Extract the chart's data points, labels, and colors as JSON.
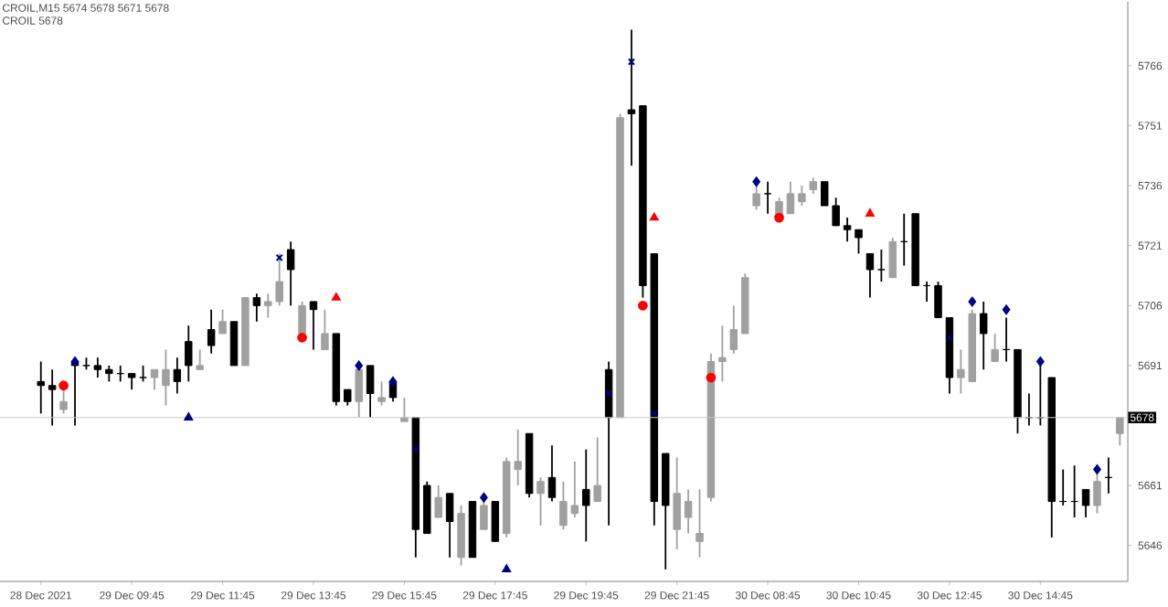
{
  "chart_data": {
    "type": "candlestick",
    "categories": [
      "28 Dec 2021",
      null,
      null,
      null,
      null,
      null,
      null,
      null,
      "29 Dec 09:45",
      null,
      null,
      null,
      null,
      null,
      null,
      null,
      "29 Dec 11:45",
      null,
      null,
      null,
      null,
      null,
      null,
      null,
      "29 Dec 13:45",
      null,
      null,
      null,
      null,
      null,
      null,
      null,
      "29 Dec 15:45",
      null,
      null,
      null,
      null,
      null,
      null,
      null,
      "29 Dec 17:45",
      null,
      null,
      null,
      null,
      null,
      null,
      null,
      "29 Dec 19:45",
      null,
      null,
      null,
      null,
      null,
      null,
      null,
      "29 Dec 21:45",
      null,
      null,
      null,
      null,
      null,
      null,
      null,
      "30 Dec 08:45",
      null,
      null,
      null,
      null,
      null,
      null,
      null,
      "30 Dec 10:45",
      null,
      null,
      null,
      null,
      null,
      null,
      null,
      "30 Dec 12:45",
      null,
      null,
      null,
      null,
      null,
      null,
      null,
      "30 Dec 14:45",
      null,
      null,
      null,
      null,
      null,
      null,
      null
    ],
    "ohlc": [
      [
        5687,
        5692,
        5679,
        5686
      ],
      [
        5686,
        5690,
        5676,
        5685
      ],
      [
        5680,
        5686,
        5679,
        5682
      ],
      [
        5692,
        5693,
        5676,
        5691
      ],
      [
        5691,
        5693,
        5690,
        5691
      ],
      [
        5691,
        5693,
        5688,
        5690
      ],
      [
        5690,
        5691,
        5687,
        5689
      ],
      [
        5689,
        5691,
        5687,
        5689
      ],
      [
        5689,
        5689,
        5685,
        5688
      ],
      [
        5688,
        5691,
        5687,
        5688
      ],
      [
        5688,
        5690,
        5685,
        5690
      ],
      [
        5686,
        5695,
        5681,
        5690
      ],
      [
        5690,
        5693,
        5684,
        5687
      ],
      [
        5697,
        5701,
        5687,
        5691
      ],
      [
        5690,
        5695,
        5690,
        5691
      ],
      [
        5700,
        5705,
        5694,
        5696
      ],
      [
        5699,
        5705,
        5699,
        5702
      ],
      [
        5702,
        5702,
        5691,
        5691
      ],
      [
        5691,
        5708,
        5691,
        5708
      ],
      [
        5708,
        5709,
        5702,
        5706
      ],
      [
        5706,
        5709,
        5703,
        5707
      ],
      [
        5707,
        5719,
        5706,
        5712
      ],
      [
        5720,
        5722,
        5706,
        5715
      ],
      [
        5699,
        5707,
        5699,
        5706
      ],
      [
        5707,
        5707,
        5695,
        5705
      ],
      [
        5695,
        5705,
        5695,
        5699
      ],
      [
        5699,
        5699,
        5681,
        5682
      ],
      [
        5685,
        5685,
        5681,
        5682
      ],
      [
        5682,
        5691,
        5678,
        5690
      ],
      [
        5691,
        5691,
        5678,
        5684
      ],
      [
        5682,
        5687,
        5681,
        5683
      ],
      [
        5687,
        5687,
        5682,
        5683
      ],
      [
        5677,
        5683,
        5677,
        5678
      ],
      [
        5678,
        5678,
        5643,
        5650
      ],
      [
        5661,
        5662,
        5649,
        5649
      ],
      [
        5653,
        5661,
        5653,
        5658
      ],
      [
        5659,
        5659,
        5643,
        5652
      ],
      [
        5643,
        5656,
        5641,
        5654
      ],
      [
        5657,
        5657,
        5643,
        5643
      ],
      [
        5650,
        5658,
        5650,
        5656
      ],
      [
        5657,
        5657,
        5647,
        5647
      ],
      [
        5649,
        5668,
        5648,
        5667
      ],
      [
        5665,
        5675,
        5661,
        5667
      ],
      [
        5674,
        5674,
        5658,
        5659
      ],
      [
        5659,
        5663,
        5651,
        5662
      ],
      [
        5663,
        5671,
        5657,
        5658
      ],
      [
        5651,
        5662,
        5650,
        5657
      ],
      [
        5654,
        5667,
        5653,
        5656
      ],
      [
        5660,
        5670,
        5647,
        5656
      ],
      [
        5657,
        5673,
        5657,
        5661
      ],
      [
        5690,
        5692,
        5651,
        5678
      ],
      [
        5678,
        5754,
        5678,
        5753
      ],
      [
        5755,
        5775,
        5741,
        5754
      ],
      [
        5756,
        5756,
        5708,
        5711
      ],
      [
        5719,
        5719,
        5651,
        5657
      ],
      [
        5669,
        5669,
        5640,
        5656
      ],
      [
        5650,
        5668,
        5645,
        5659
      ],
      [
        5653,
        5660,
        5649,
        5657
      ],
      [
        5647,
        5660,
        5643,
        5649
      ],
      [
        5658,
        5694,
        5657,
        5692
      ],
      [
        5692,
        5701,
        5687,
        5693
      ],
      [
        5695,
        5706,
        5694,
        5700
      ],
      [
        5699,
        5714,
        5699,
        5713
      ],
      [
        5731,
        5737,
        5730,
        5734
      ],
      [
        5734,
        5737,
        5729,
        5734
      ],
      [
        5728,
        5733,
        5728,
        5732
      ],
      [
        5729,
        5737,
        5729,
        5734
      ],
      [
        5732,
        5736,
        5731,
        5734
      ],
      [
        5735,
        5738,
        5734,
        5737
      ],
      [
        5737,
        5737,
        5731,
        5731
      ],
      [
        5731,
        5733,
        5726,
        5726
      ],
      [
        5726,
        5728,
        5722,
        5725
      ],
      [
        5725,
        5725,
        5719,
        5723
      ],
      [
        5719,
        5719,
        5708,
        5715
      ],
      [
        5715,
        5720,
        5712,
        5715
      ],
      [
        5713,
        5723,
        5713,
        5722
      ],
      [
        5722,
        5729,
        5716,
        5722
      ],
      [
        5729,
        5729,
        5711,
        5711
      ],
      [
        5711,
        5712,
        5707,
        5711
      ],
      [
        5711,
        5712,
        5703,
        5703
      ],
      [
        5703,
        5703,
        5684,
        5688
      ],
      [
        5688,
        5695,
        5684,
        5690
      ],
      [
        5687,
        5705,
        5687,
        5704
      ],
      [
        5704,
        5707,
        5690,
        5699
      ],
      [
        5692,
        5699,
        5692,
        5695
      ],
      [
        5695,
        5703,
        5692,
        5695
      ],
      [
        5695,
        5695,
        5674,
        5678
      ],
      [
        5678,
        5684,
        5676,
        5678
      ],
      [
        5678,
        5692,
        5676,
        5678
      ],
      [
        5688,
        5688,
        5648,
        5657
      ],
      [
        5657,
        5665,
        5656,
        5657
      ],
      [
        5657,
        5666,
        5653,
        5657
      ],
      [
        5660,
        5660,
        5653,
        5656
      ],
      [
        5656,
        5665,
        5654,
        5662
      ],
      [
        5663,
        5668,
        5659,
        5663
      ],
      [
        5674,
        5678,
        5671,
        5678
      ]
    ],
    "series": [
      {
        "type": "scatter",
        "marker": "diamond",
        "color": "#000080",
        "values": [
          null,
          null,
          null,
          5692,
          null,
          null,
          null,
          null,
          null,
          null,
          null,
          null,
          null,
          null,
          null,
          null,
          null,
          null,
          null,
          null,
          null,
          null,
          null,
          null,
          null,
          null,
          null,
          null,
          5691,
          null,
          null,
          5687,
          null,
          null,
          null,
          null,
          null,
          null,
          null,
          5658,
          null,
          null,
          null,
          null,
          null,
          null,
          null,
          null,
          null,
          null,
          null,
          null,
          null,
          null,
          null,
          null,
          null,
          null,
          null,
          null,
          null,
          null,
          null,
          5737,
          null,
          null,
          null,
          null,
          null,
          null,
          null,
          null,
          null,
          null,
          null,
          null,
          null,
          null,
          null,
          null,
          null,
          null,
          5707,
          null,
          null,
          5705,
          null,
          null,
          5692,
          null,
          null,
          null,
          null,
          5665,
          null,
          null
        ]
      },
      {
        "type": "scatter",
        "marker": "circle",
        "color": "#ff0000",
        "values": [
          null,
          null,
          5686,
          null,
          null,
          null,
          null,
          null,
          null,
          null,
          null,
          null,
          null,
          null,
          null,
          null,
          null,
          null,
          null,
          null,
          null,
          null,
          null,
          5698,
          null,
          null,
          null,
          null,
          null,
          null,
          null,
          null,
          null,
          null,
          null,
          null,
          null,
          null,
          null,
          null,
          null,
          null,
          null,
          null,
          null,
          null,
          null,
          null,
          null,
          null,
          null,
          null,
          null,
          5706,
          null,
          null,
          null,
          null,
          null,
          5688,
          null,
          null,
          null,
          null,
          null,
          5728,
          null,
          null,
          null,
          null,
          null,
          null,
          null,
          null,
          null,
          null,
          null,
          null,
          null,
          null,
          null,
          null,
          null,
          null,
          null,
          null,
          null,
          null,
          null,
          null,
          null,
          null,
          null,
          null,
          null,
          null
        ]
      },
      {
        "type": "scatter",
        "marker": "cross",
        "color": "#000080",
        "values": [
          null,
          null,
          null,
          null,
          null,
          null,
          null,
          null,
          null,
          null,
          null,
          null,
          null,
          null,
          null,
          null,
          null,
          null,
          null,
          null,
          null,
          5718,
          null,
          null,
          null,
          null,
          null,
          null,
          null,
          null,
          null,
          null,
          null,
          5670,
          null,
          null,
          null,
          null,
          null,
          null,
          null,
          null,
          null,
          null,
          null,
          null,
          null,
          null,
          null,
          null,
          5684,
          null,
          5767,
          null,
          5679,
          null,
          null,
          null,
          null,
          null,
          null,
          null,
          null,
          null,
          null,
          null,
          null,
          null,
          null,
          null,
          null,
          null,
          null,
          null,
          null,
          null,
          null,
          null,
          null,
          null,
          5698,
          null,
          null,
          null,
          null,
          null,
          null,
          null,
          null,
          null,
          null,
          null,
          null,
          null,
          null,
          null
        ]
      },
      {
        "type": "scatter",
        "marker": "triangle",
        "color": "#000080",
        "values": [
          null,
          null,
          null,
          null,
          null,
          null,
          null,
          null,
          null,
          null,
          null,
          null,
          null,
          5678,
          null,
          null,
          null,
          null,
          null,
          null,
          null,
          null,
          null,
          null,
          null,
          null,
          null,
          null,
          null,
          null,
          null,
          null,
          null,
          null,
          null,
          null,
          null,
          null,
          null,
          null,
          null,
          5640,
          null,
          null,
          null,
          null,
          null,
          null,
          null,
          null,
          null,
          null,
          null,
          null,
          null,
          null,
          null,
          null,
          null,
          null,
          null,
          null,
          null,
          null,
          null,
          null,
          null,
          null,
          null,
          null,
          null,
          null,
          null,
          null,
          null,
          null,
          null,
          null,
          null,
          null,
          null,
          null,
          null,
          null,
          null,
          null,
          null,
          null,
          null,
          null,
          null,
          null,
          null,
          null,
          null,
          null
        ]
      },
      {
        "type": "scatter",
        "marker": "triangle",
        "color": "#ff0000",
        "values": [
          null,
          null,
          null,
          null,
          null,
          null,
          null,
          null,
          null,
          null,
          null,
          null,
          null,
          null,
          null,
          null,
          null,
          null,
          null,
          null,
          null,
          null,
          null,
          null,
          null,
          null,
          5708,
          null,
          null,
          null,
          null,
          null,
          null,
          null,
          null,
          null,
          null,
          null,
          null,
          null,
          null,
          null,
          null,
          null,
          null,
          null,
          null,
          null,
          null,
          null,
          null,
          null,
          null,
          null,
          5728,
          null,
          null,
          null,
          null,
          null,
          null,
          null,
          null,
          null,
          null,
          null,
          null,
          null,
          null,
          null,
          null,
          null,
          null,
          5729,
          null,
          null,
          null,
          null,
          null,
          null,
          null,
          null,
          null,
          null,
          null,
          null,
          null,
          null,
          null,
          null,
          null,
          null,
          null,
          null,
          null,
          null
        ]
      }
    ],
    "ylim": [
      5637,
      5782
    ],
    "yticks": [
      5646,
      5661,
      5691,
      5706,
      5721,
      5736,
      5751,
      5766
    ],
    "ref_lines": [
      {
        "axis": "y",
        "value": 5678,
        "label": "5678",
        "color": "#c8c8c8"
      }
    ],
    "annotations": [
      "CROIL,M15  5674 5678 5671 5678",
      "CROIL 5678"
    ]
  }
}
